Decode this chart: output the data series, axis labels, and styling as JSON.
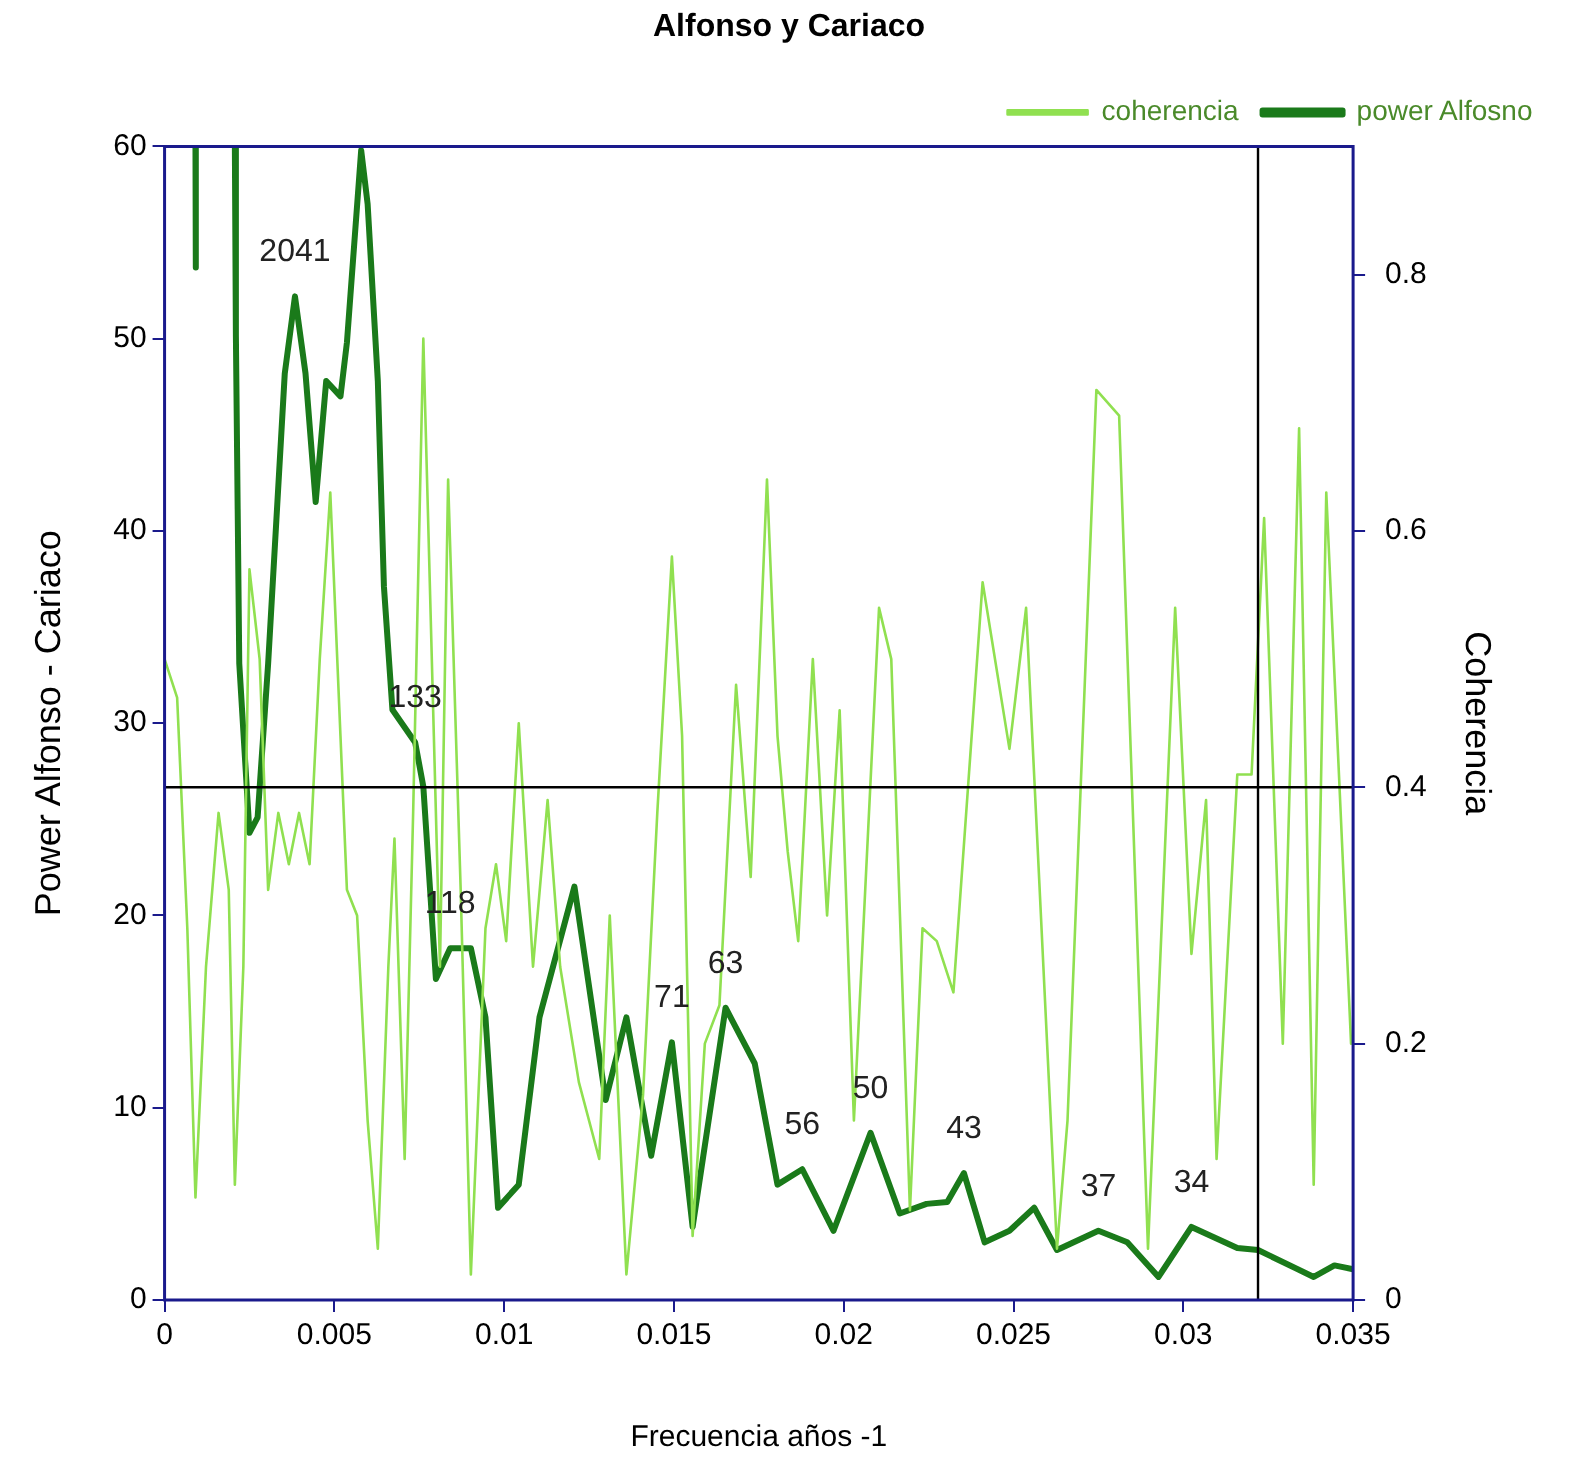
{
  "chart_data": {
    "type": "line",
    "title": "Alfonso y Cariaco",
    "xlabel": "Frecuencia años -1",
    "ylabel": "Power Alfonso - Cariaco",
    "y2label": "Coherencia",
    "xlim": [
      0,
      0.035
    ],
    "xticks": [
      0,
      0.005,
      0.01,
      0.015,
      0.02,
      0.025,
      0.03,
      0.035
    ],
    "ylim": [
      0,
      60
    ],
    "yticks": [
      0,
      10,
      20,
      30,
      40,
      50,
      60
    ],
    "y2lim": [
      0,
      0.9
    ],
    "y2ticks": [
      0,
      0.2,
      0.4,
      0.6,
      0.8
    ],
    "grid": false,
    "legend": "top right",
    "marker": "none",
    "line_style": "solid",
    "series": [
      {
        "name": "coherencia",
        "color": "#90e050",
        "axis": "y2",
        "x": [
          0,
          0.00037,
          0.00067,
          0.00091,
          0.00122,
          0.00159,
          0.00189,
          0.00207,
          0.00232,
          0.0025,
          0.0028,
          0.00305,
          0.00335,
          0.00366,
          0.00396,
          0.00427,
          0.00457,
          0.00488,
          0.00518,
          0.00537,
          0.00567,
          0.00598,
          0.00628,
          0.00659,
          0.00677,
          0.00707,
          0.00732,
          0.00762,
          0.00793,
          0.00811,
          0.00835,
          0.00872,
          0.00902,
          0.00945,
          0.00976,
          0.01006,
          0.01043,
          0.01085,
          0.01128,
          0.01165,
          0.0122,
          0.0128,
          0.01311,
          0.0136,
          0.01409,
          0.01451,
          0.01494,
          0.01524,
          0.01555,
          0.01591,
          0.01634,
          0.01683,
          0.01726,
          0.01774,
          0.01805,
          0.01835,
          0.01866,
          0.01909,
          0.01951,
          0.01988,
          0.0203,
          0.02104,
          0.0214,
          0.02195,
          0.02232,
          0.02274,
          0.02323,
          0.02409,
          0.02488,
          0.02537,
          0.02628,
          0.02659,
          0.02744,
          0.02811,
          0.02896,
          0.02976,
          0.03024,
          0.03067,
          0.03098,
          0.03159,
          0.03201,
          0.03238,
          0.03293,
          0.03341,
          0.03384,
          0.03421,
          0.03494
        ],
        "values": [
          0.5,
          0.47,
          0.29,
          0.08,
          0.26,
          0.38,
          0.32,
          0.09,
          0.26,
          0.57,
          0.5,
          0.32,
          0.38,
          0.34,
          0.38,
          0.34,
          0.5,
          0.63,
          0.44,
          0.32,
          0.3,
          0.14,
          0.04,
          0.26,
          0.36,
          0.11,
          0.38,
          0.75,
          0.44,
          0.26,
          0.64,
          0.32,
          0.02,
          0.29,
          0.34,
          0.28,
          0.45,
          0.26,
          0.39,
          0.26,
          0.17,
          0.11,
          0.3,
          0.02,
          0.16,
          0.38,
          0.58,
          0.44,
          0.05,
          0.2,
          0.23,
          0.48,
          0.33,
          0.64,
          0.44,
          0.35,
          0.28,
          0.5,
          0.3,
          0.46,
          0.14,
          0.54,
          0.5,
          0.07,
          0.29,
          0.28,
          0.24,
          0.56,
          0.43,
          0.54,
          0.04,
          0.14,
          0.71,
          0.69,
          0.04,
          0.54,
          0.27,
          0.39,
          0.11,
          0.41,
          0.41,
          0.61,
          0.2,
          0.68,
          0.09,
          0.63,
          0.2
        ]
      },
      {
        "name": "power Alfosno",
        "color": "#1a7a1a",
        "axis": "y",
        "x": [
          0.00091,
          0.00092,
          0.0015,
          0.00207,
          0.0021,
          0.0022,
          0.0025,
          0.00274,
          0.00305,
          0.00354,
          0.00384,
          0.00415,
          0.00445,
          0.00476,
          0.00518,
          0.00537,
          0.00579,
          0.00598,
          0.00628,
          0.00646,
          0.00671,
          0.00738,
          0.00762,
          0.00799,
          0.00841,
          0.00902,
          0.00945,
          0.00982,
          0.01043,
          0.01104,
          0.01207,
          0.01299,
          0.0136,
          0.01433,
          0.01494,
          0.01555,
          0.01652,
          0.01738,
          0.01805,
          0.01878,
          0.0197,
          0.02079,
          0.02165,
          0.02244,
          0.02305,
          0.02354,
          0.02415,
          0.02488,
          0.02561,
          0.02628,
          0.0275,
          0.02835,
          0.02927,
          0.03024,
          0.03159,
          0.0322,
          0.03384,
          0.03445,
          0.035
        ],
        "values": [
          60,
          53.7,
          null,
          60,
          50.2,
          33.1,
          24.3,
          25.1,
          33.1,
          48.2,
          52.2,
          48.2,
          41.5,
          47.8,
          47,
          49.8,
          59.8,
          57,
          47.8,
          37.1,
          30.7,
          29,
          26.7,
          16.7,
          18.3,
          18.3,
          14.7,
          4.8,
          6,
          14.7,
          21.5,
          10.4,
          14.7,
          7.5,
          13.4,
          3.8,
          15.2,
          12.3,
          6,
          6.8,
          3.6,
          8.7,
          4.5,
          5,
          5.1,
          6.6,
          3,
          3.6,
          4.8,
          2.6,
          3.6,
          3,
          1.2,
          3.8,
          2.7,
          2.6,
          1.2,
          1.8,
          1.6
        ]
      }
    ],
    "ref_lines": [
      {
        "axis": "x",
        "value": 0.0322,
        "color": "#000000"
      },
      {
        "axis": "y2",
        "value": 0.4,
        "color": "#000000"
      }
    ],
    "annotations": [
      {
        "text": "2041",
        "x": 0.00384,
        "y": 52.2
      },
      {
        "text": "133",
        "x": 0.00738,
        "y": 29
      },
      {
        "text": "118",
        "x": 0.00841,
        "y": 18.3
      },
      {
        "text": "71",
        "x": 0.01494,
        "y": 13.4
      },
      {
        "text": "63",
        "x": 0.01652,
        "y": 15.2
      },
      {
        "text": "56",
        "x": 0.01878,
        "y": 6.8
      },
      {
        "text": "50",
        "x": 0.02079,
        "y": 8.7
      },
      {
        "text": "43",
        "x": 0.02354,
        "y": 6.6
      },
      {
        "text": "37",
        "x": 0.0275,
        "y": 3.6
      },
      {
        "text": "34",
        "x": 0.03024,
        "y": 3.8
      }
    ]
  }
}
